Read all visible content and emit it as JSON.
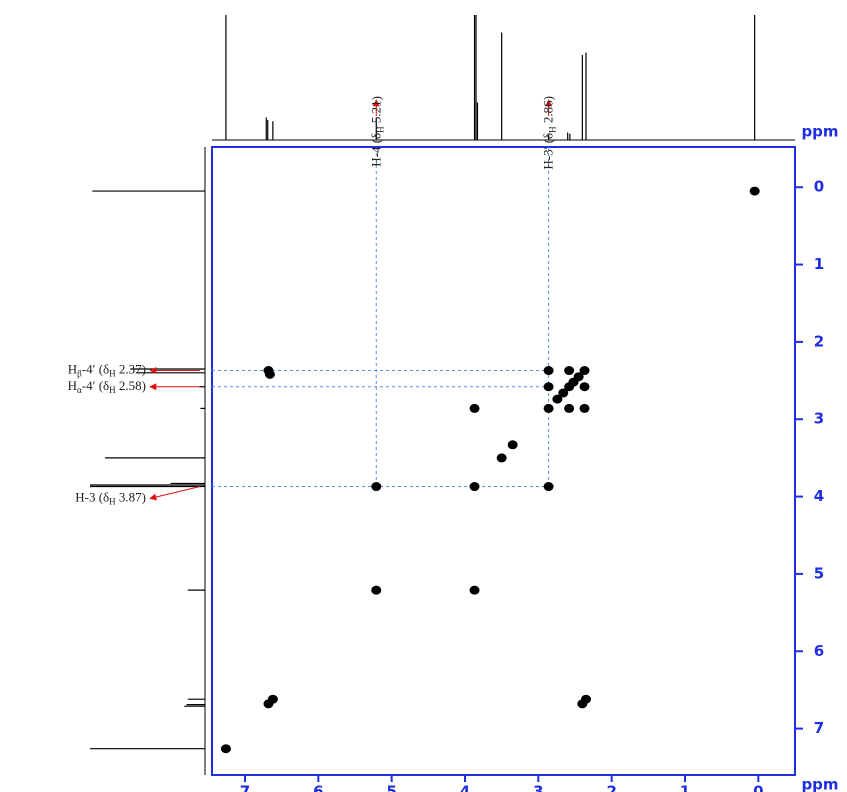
{
  "chart_data": {
    "type": "cosy",
    "x_label": "ppm",
    "y_label": "ppm",
    "xlim": [
      7.45,
      -0.5
    ],
    "ylim": [
      -0.52,
      7.6
    ],
    "xticks": [
      7,
      6,
      5,
      4,
      3,
      2,
      1,
      0
    ],
    "yticks": [
      0,
      1,
      2,
      3,
      4,
      5,
      6,
      7
    ],
    "frame_color": "#1f2fe0",
    "peak_color": "#000000",
    "guide_color": "#5b8ce8",
    "arrow_color": "#e01010",
    "cross_peaks": {
      "x": [
        0.05,
        2.37,
        2.45,
        2.52,
        2.58,
        2.66,
        2.74,
        2.86,
        2.86,
        2.86,
        2.58,
        2.58,
        2.37,
        2.37,
        6.68,
        6.66,
        3.87,
        3.87,
        3.5,
        3.35,
        2.86,
        5.21,
        5.21,
        3.87,
        6.68,
        6.62,
        7.26,
        2.4,
        2.35
      ],
      "y": [
        0.05,
        2.37,
        2.45,
        2.52,
        2.58,
        2.66,
        2.74,
        2.86,
        2.37,
        2.58,
        2.37,
        2.86,
        2.58,
        2.86,
        2.37,
        2.42,
        2.86,
        3.87,
        3.5,
        3.33,
        3.87,
        3.87,
        5.21,
        5.21,
        6.68,
        6.62,
        7.26,
        6.68,
        6.62
      ]
    },
    "top_projection": {
      "ppm": [
        7.26,
        6.71,
        6.69,
        6.62,
        5.21,
        3.87,
        3.85,
        3.83,
        3.5,
        2.86,
        2.6,
        2.57,
        2.4,
        2.35,
        0.05
      ],
      "heights": [
        1.0,
        0.18,
        0.16,
        0.15,
        0.18,
        1.0,
        1.0,
        0.3,
        0.86,
        0.04,
        0.06,
        0.05,
        0.68,
        0.7,
        1.0
      ]
    },
    "left_projection": {
      "ppm": [
        7.26,
        6.71,
        6.69,
        6.62,
        5.21,
        3.87,
        3.85,
        3.83,
        3.5,
        2.86,
        2.58,
        2.4,
        2.35,
        0.05
      ],
      "heights": [
        1.0,
        0.18,
        0.16,
        0.15,
        0.15,
        1.0,
        1.0,
        0.3,
        0.87,
        0.04,
        0.05,
        0.6,
        0.65,
        0.98
      ]
    },
    "top_annotations": [
      {
        "parts": [
          "H-4 (δ",
          "H",
          " 5.21)"
        ],
        "ppm": 5.21
      },
      {
        "parts": [
          "H-3′ (δ",
          "H",
          " 2.86)"
        ],
        "ppm": 2.86
      }
    ],
    "left_annotations": [
      {
        "parts": [
          "H",
          "β",
          "-4′ (δ",
          "H",
          " 2.37)"
        ],
        "ppm": 2.37
      },
      {
        "parts": [
          "H",
          "α",
          "-4′ (δ",
          "H",
          " 2.58)"
        ],
        "ppm": 2.58
      },
      {
        "parts": [
          "H-3 (δ",
          "H",
          " 3.87)"
        ],
        "ppm": 3.87
      }
    ]
  }
}
